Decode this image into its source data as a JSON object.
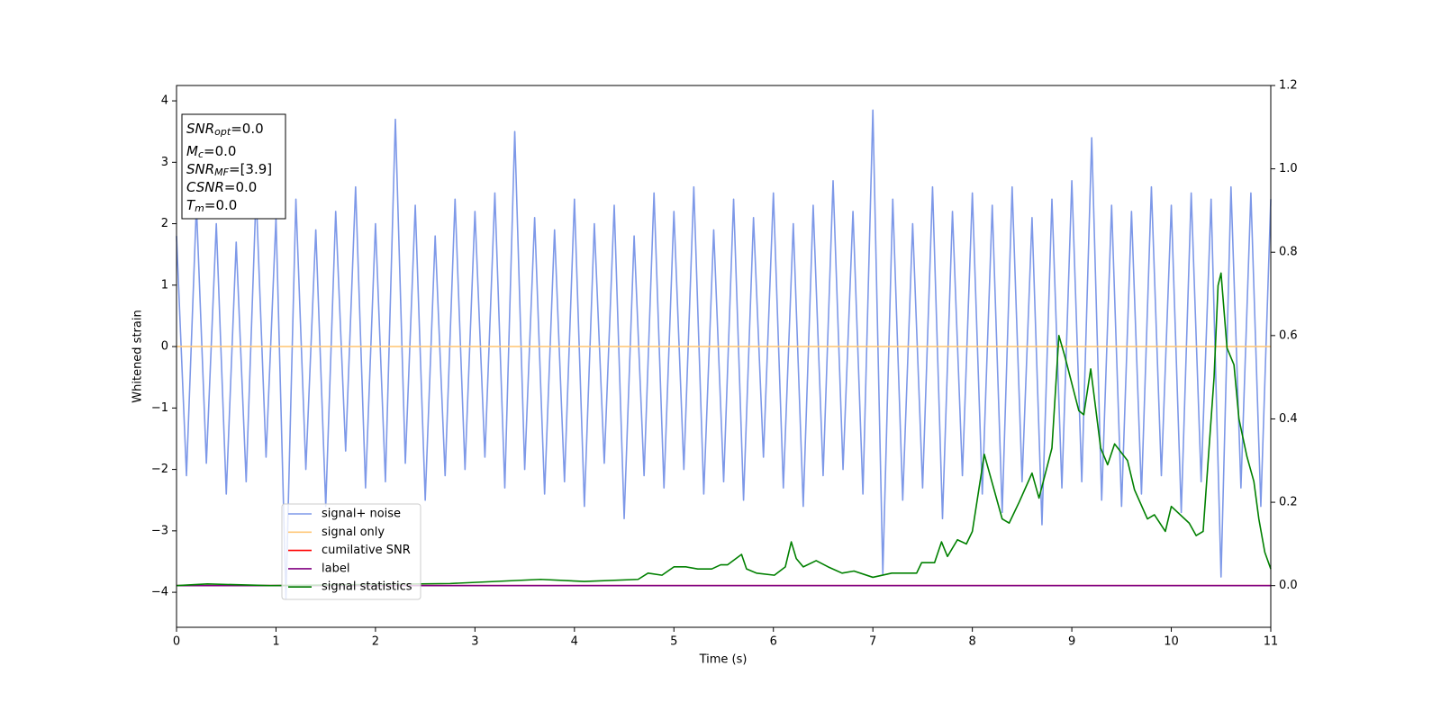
{
  "chart_data": {
    "type": "line",
    "xlabel": "Time (s)",
    "ylabel": "Whitened strain",
    "xlim": [
      0,
      11
    ],
    "xticks": [
      0,
      1,
      2,
      3,
      4,
      5,
      6,
      7,
      8,
      9,
      10,
      11
    ],
    "ylim": [
      -4.57,
      4.25
    ],
    "yticks": [
      {
        "value": -4,
        "label": "−4"
      },
      {
        "value": -3,
        "label": "−3"
      },
      {
        "value": -2,
        "label": "−2"
      },
      {
        "value": -1,
        "label": "−1"
      },
      0,
      1,
      2,
      3,
      4
    ],
    "y2lim": [
      -0.1,
      1.2
    ],
    "y2ticks": [
      {
        "value": 0,
        "label": "0.0"
      },
      {
        "value": 0.2,
        "label": "0.2"
      },
      {
        "value": 0.4,
        "label": "0.4"
      },
      {
        "value": 0.6,
        "label": "0.6"
      },
      {
        "value": 0.8,
        "label": "0.8"
      },
      {
        "value": 1.0,
        "label": "1.0"
      },
      {
        "value": 1.2,
        "label": "1.2"
      }
    ],
    "legend": "lower left",
    "annotation": [
      {
        "main": "SNR",
        "sub": "opt",
        "rest": "=0.0"
      },
      {
        "main": "M",
        "sub": "c",
        "rest": "=0.0"
      },
      {
        "main": "SNR",
        "sub": "MF",
        "rest": "=[3.9]"
      },
      {
        "main": "CSNR",
        "rest": "=0.0"
      },
      {
        "main": "T",
        "sub": "m",
        "rest": "=0.0"
      }
    ],
    "series": [
      {
        "name": "signal+ noise",
        "color": "#6f8de6",
        "opacity": 0.9,
        "axis": "y",
        "x": [
          0,
          0.1,
          0.2,
          0.3,
          0.4,
          0.5,
          0.6,
          0.7,
          0.8,
          0.9,
          1,
          1.1,
          1.2,
          1.3,
          1.4,
          1.5,
          1.6,
          1.7,
          1.8,
          1.9,
          2,
          2.1,
          2.2,
          2.3,
          2.4,
          2.5,
          2.6,
          2.7,
          2.8,
          2.9,
          3,
          3.1,
          3.2,
          3.3,
          3.4,
          3.5,
          3.6,
          3.7,
          3.8,
          3.9,
          4,
          4.1,
          4.2,
          4.3,
          4.4,
          4.5,
          4.6,
          4.7,
          4.8,
          4.9,
          5,
          5.1,
          5.2,
          5.3,
          5.4,
          5.5,
          5.6,
          5.7,
          5.8,
          5.9,
          6,
          6.1,
          6.2,
          6.3,
          6.4,
          6.5,
          6.6,
          6.7,
          6.8,
          6.9,
          7,
          7.1,
          7.2,
          7.3,
          7.4,
          7.5,
          7.6,
          7.7,
          7.8,
          7.9,
          8,
          8.1,
          8.2,
          8.3,
          8.4,
          8.5,
          8.6,
          8.7,
          8.8,
          8.9,
          9,
          9.1,
          9.2,
          9.3,
          9.4,
          9.5,
          9.6,
          9.7,
          9.8,
          9.9,
          10,
          10.1,
          10.2,
          10.3,
          10.4,
          10.5,
          10.6,
          10.7,
          10.8,
          10.9,
          11
        ],
        "values": [
          1.8,
          -2.1,
          2.3,
          -1.9,
          2.0,
          -2.4,
          1.7,
          -2.2,
          2.5,
          -1.8,
          2.1,
          -4.1,
          2.4,
          -2.0,
          1.9,
          -2.6,
          2.2,
          -1.7,
          2.6,
          -2.3,
          2.0,
          -2.2,
          3.7,
          -1.9,
          2.3,
          -2.5,
          1.8,
          -2.1,
          2.4,
          -2.0,
          2.2,
          -1.8,
          2.5,
          -2.3,
          3.5,
          -2.0,
          2.1,
          -2.4,
          1.9,
          -2.2,
          2.4,
          -2.6,
          2.0,
          -1.9,
          2.3,
          -2.8,
          1.8,
          -2.1,
          2.5,
          -2.3,
          2.2,
          -2.0,
          2.6,
          -2.4,
          1.9,
          -2.2,
          2.4,
          -2.5,
          2.1,
          -1.8,
          2.5,
          -2.3,
          2.0,
          -2.6,
          2.3,
          -2.1,
          2.7,
          -2.0,
          2.2,
          -2.4,
          3.85,
          -3.7,
          2.4,
          -2.5,
          2.0,
          -2.3,
          2.6,
          -2.8,
          2.2,
          -2.1,
          2.5,
          -2.4,
          2.3,
          -2.7,
          2.6,
          -2.2,
          2.1,
          -2.9,
          2.4,
          -2.3,
          2.7,
          -2.2,
          3.4,
          -2.5,
          2.3,
          -2.6,
          2.2,
          -2.4,
          2.6,
          -2.1,
          2.3,
          -2.7,
          2.5,
          -2.2,
          2.4,
          -3.75,
          2.6,
          -2.3,
          2.5,
          -2.6,
          2.4
        ]
      },
      {
        "name": "signal only",
        "color": "#ffc87a",
        "axis": "y",
        "x": [
          0,
          11
        ],
        "values": [
          0,
          0
        ]
      },
      {
        "name": "cumilative SNR",
        "color": "#ff0000",
        "axis": "y2",
        "x": [
          0,
          11
        ],
        "values": [
          0,
          0
        ]
      },
      {
        "name": "label",
        "color": "#800080",
        "axis": "y2",
        "x": [
          0,
          11
        ],
        "values": [
          0,
          0
        ]
      },
      {
        "name": "signal statistics",
        "color": "#008000",
        "axis": "y2",
        "x": [
          0,
          0.31,
          0.94,
          2.75,
          3.66,
          4.1,
          4.64,
          4.74,
          4.88,
          5.0,
          5.12,
          5.24,
          5.38,
          5.47,
          5.54,
          5.68,
          5.73,
          5.83,
          6.01,
          6.12,
          6.18,
          6.23,
          6.3,
          6.43,
          6.55,
          6.69,
          6.81,
          7.0,
          7.19,
          7.44,
          7.49,
          7.62,
          7.69,
          7.75,
          7.85,
          7.94,
          8.0,
          8.12,
          8.3,
          8.37,
          8.47,
          8.6,
          8.67,
          8.8,
          8.87,
          8.93,
          9.07,
          9.12,
          9.19,
          9.29,
          9.36,
          9.43,
          9.56,
          9.63,
          9.76,
          9.83,
          9.94,
          10.0,
          10.18,
          10.25,
          10.32,
          10.43,
          10.47,
          10.5,
          10.56,
          10.63,
          10.68,
          10.76,
          10.83,
          10.88,
          10.94,
          11
        ],
        "values": [
          0,
          0.004,
          0,
          0.005,
          0.015,
          0.01,
          0.015,
          0.03,
          0.025,
          0.045,
          0.045,
          0.04,
          0.04,
          0.05,
          0.05,
          0.075,
          0.04,
          0.03,
          0.025,
          0.045,
          0.105,
          0.065,
          0.045,
          0.06,
          0.045,
          0.03,
          0.035,
          0.02,
          0.03,
          0.03,
          0.055,
          0.055,
          0.105,
          0.07,
          0.11,
          0.1,
          0.13,
          0.315,
          0.16,
          0.15,
          0.2,
          0.27,
          0.21,
          0.33,
          0.6,
          0.55,
          0.42,
          0.41,
          0.52,
          0.33,
          0.29,
          0.34,
          0.3,
          0.23,
          0.16,
          0.17,
          0.13,
          0.19,
          0.15,
          0.12,
          0.13,
          0.5,
          0.72,
          0.75,
          0.57,
          0.53,
          0.4,
          0.31,
          0.25,
          0.16,
          0.08,
          0.04
        ]
      }
    ]
  }
}
